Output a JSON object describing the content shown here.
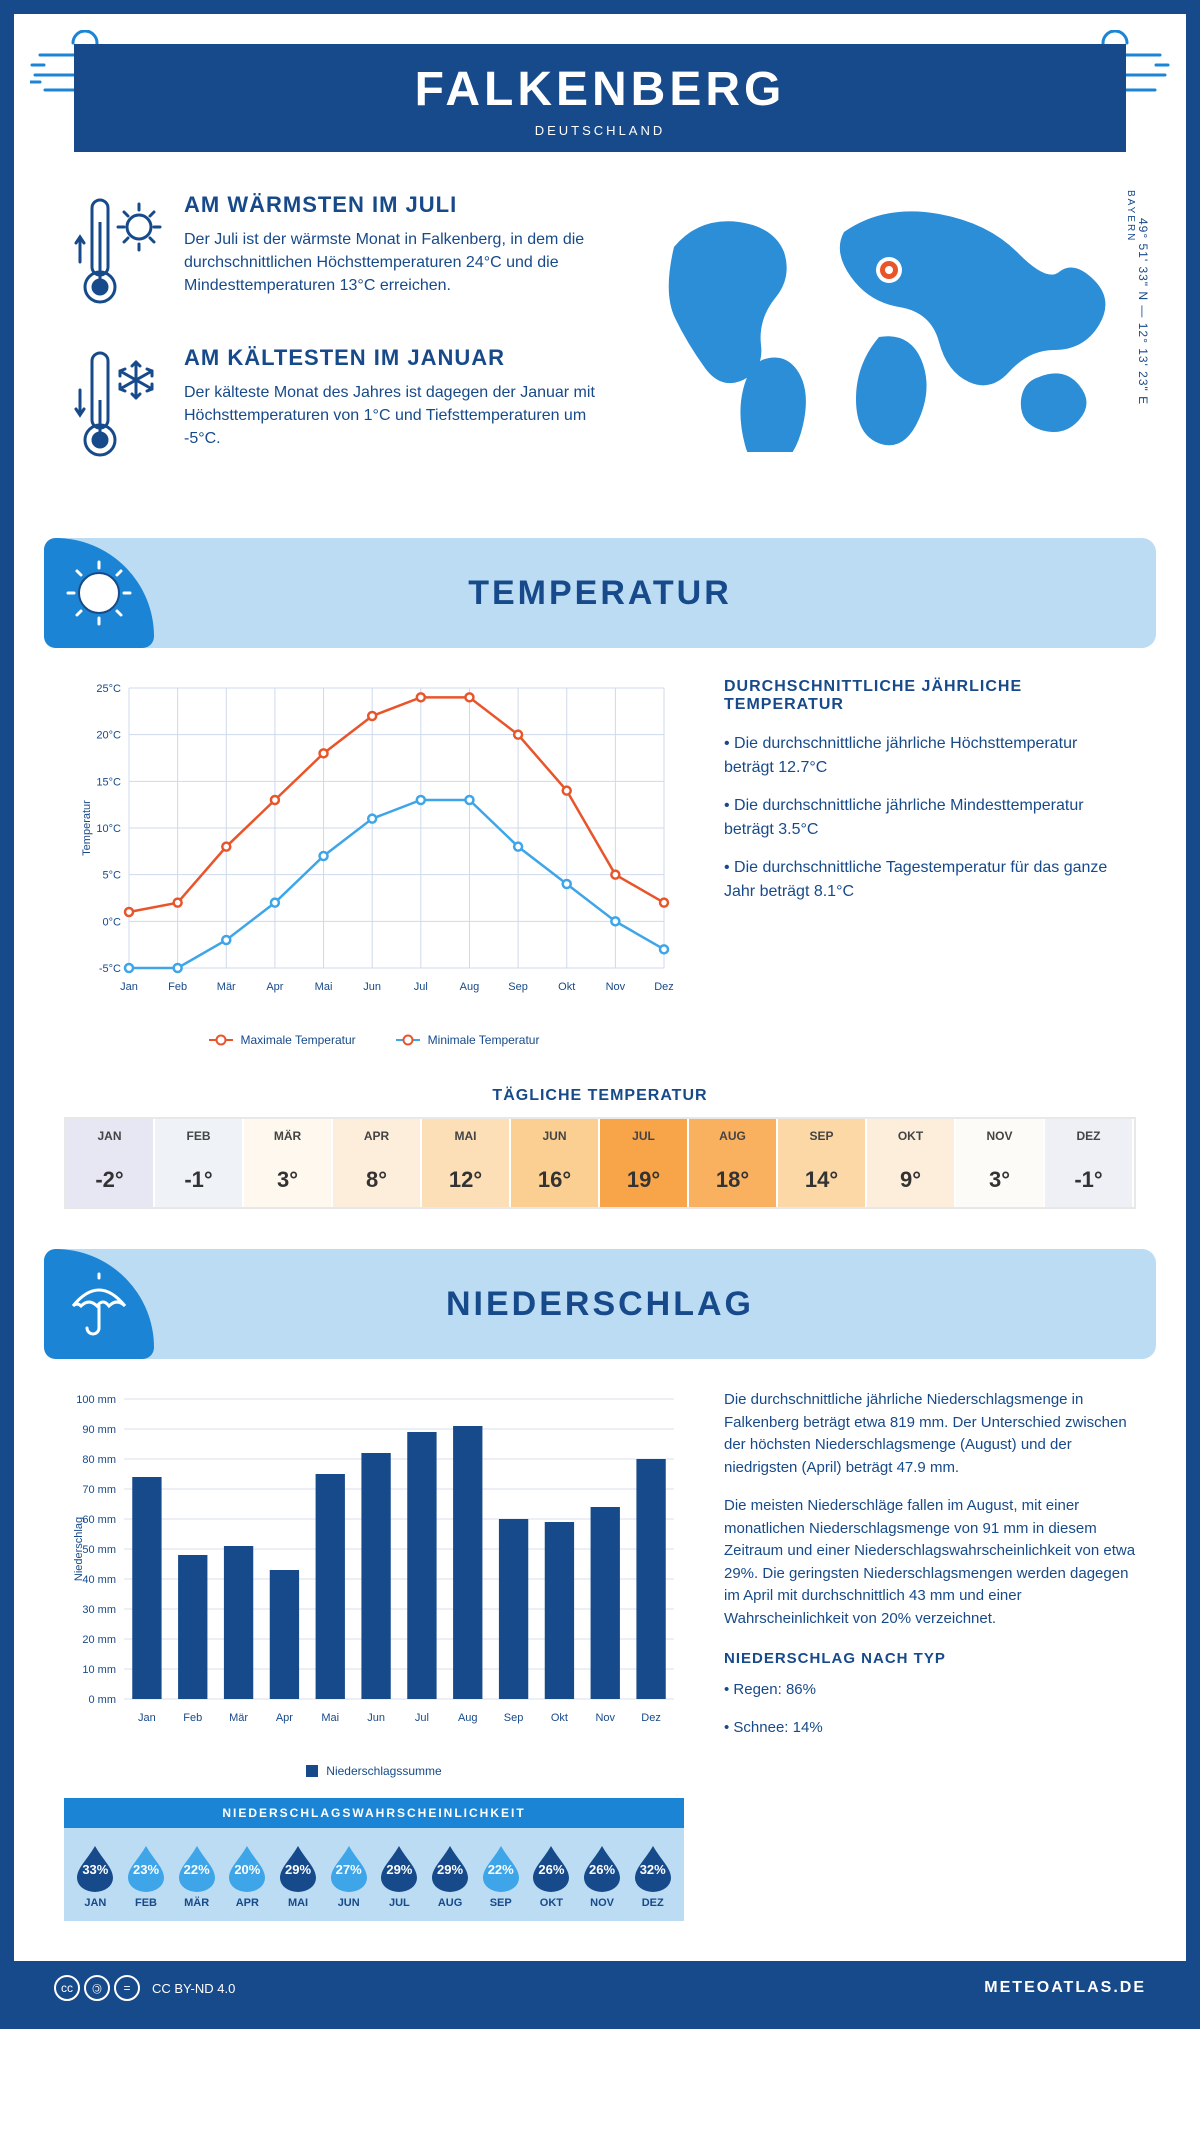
{
  "header": {
    "city": "FALKENBERG",
    "country": "DEUTSCHLAND"
  },
  "location": {
    "region": "BAYERN",
    "coords": "49° 51' 33\" N — 12° 13' 23\" E"
  },
  "facts": {
    "warm": {
      "title": "AM WÄRMSTEN IM JULI",
      "text": "Der Juli ist der wärmste Monat in Falkenberg, in dem die durchschnittlichen Höchsttemperaturen 24°C und die Mindesttemperaturen 13°C erreichen."
    },
    "cold": {
      "title": "AM KÄLTESTEN IM JANUAR",
      "text": "Der kälteste Monat des Jahres ist dagegen der Januar mit Höchsttemperaturen von 1°C und Tiefsttemperaturen um -5°C."
    }
  },
  "sections": {
    "temperature": "TEMPERATUR",
    "precipitation": "NIEDERSCHLAG"
  },
  "temp_chart": {
    "type": "line",
    "months": [
      "Jan",
      "Feb",
      "Mär",
      "Apr",
      "Mai",
      "Jun",
      "Jul",
      "Aug",
      "Sep",
      "Okt",
      "Nov",
      "Dez"
    ],
    "max": [
      1,
      2,
      8,
      13,
      18,
      22,
      24,
      24,
      20,
      14,
      5,
      2
    ],
    "min": [
      -5,
      -5,
      -2,
      2,
      7,
      11,
      13,
      13,
      8,
      4,
      0,
      -3
    ],
    "ylim": [
      -5,
      25
    ],
    "ytick_step": 5,
    "ylabel": "Temperatur",
    "max_color": "#e8552b",
    "min_color": "#3da5e8",
    "grid_color": "#cfd9ec",
    "axis_color": "#174a8a",
    "legend_max": "Maximale Temperatur",
    "legend_min": "Minimale Temperatur"
  },
  "temp_text": {
    "heading": "DURCHSCHNITTLICHE JÄHRLICHE TEMPERATUR",
    "p1": "• Die durchschnittliche jährliche Höchsttemperatur beträgt 12.7°C",
    "p2": "• Die durchschnittliche jährliche Mindesttemperatur beträgt 3.5°C",
    "p3": "• Die durchschnittliche Tagestemperatur für das ganze Jahr beträgt 8.1°C"
  },
  "daily_temp": {
    "title": "TÄGLICHE TEMPERATUR",
    "months": [
      "JAN",
      "FEB",
      "MÄR",
      "APR",
      "MAI",
      "JUN",
      "JUL",
      "AUG",
      "SEP",
      "OKT",
      "NOV",
      "DEZ"
    ],
    "values": [
      "-2°",
      "-1°",
      "3°",
      "8°",
      "12°",
      "16°",
      "19°",
      "18°",
      "14°",
      "9°",
      "3°",
      "-1°"
    ],
    "bg_colors": [
      "#e7e6f3",
      "#eff3f8",
      "#fff8ef",
      "#fdeedb",
      "#fcdfb7",
      "#fbcf91",
      "#f8a549",
      "#f9b160",
      "#fcd8a6",
      "#fdeedb",
      "#fdfbf7",
      "#eff0f6"
    ]
  },
  "precip_chart": {
    "type": "bar",
    "months": [
      "Jan",
      "Feb",
      "Mär",
      "Apr",
      "Mai",
      "Jun",
      "Jul",
      "Aug",
      "Sep",
      "Okt",
      "Nov",
      "Dez"
    ],
    "values": [
      74,
      48,
      51,
      43,
      75,
      82,
      89,
      91,
      60,
      59,
      64,
      80
    ],
    "ylim": [
      0,
      100
    ],
    "ytick_step": 10,
    "ylabel": "Niederschlag",
    "bar_color": "#174a8a",
    "grid_color": "#d8e0ee",
    "legend": "Niederschlagssumme"
  },
  "precip_text": {
    "p1": "Die durchschnittliche jährliche Niederschlagsmenge in Falkenberg beträgt etwa 819 mm. Der Unterschied zwischen der höchsten Niederschlagsmenge (August) und der niedrigsten (April) beträgt 47.9 mm.",
    "p2": "Die meisten Niederschläge fallen im August, mit einer monatlichen Niederschlagsmenge von 91 mm in diesem Zeitraum und einer Niederschlagswahrscheinlichkeit von etwa 29%. Die geringsten Niederschlagsmengen werden dagegen im April mit durchschnittlich 43 mm und einer Wahrscheinlichkeit von 20% verzeichnet.",
    "type_heading": "NIEDERSCHLAG NACH TYP",
    "type1": "• Regen: 86%",
    "type2": "• Schnee: 14%"
  },
  "probability": {
    "title": "NIEDERSCHLAGSWAHRSCHEINLICHKEIT",
    "months": [
      "JAN",
      "FEB",
      "MÄR",
      "APR",
      "MAI",
      "JUN",
      "JUL",
      "AUG",
      "SEP",
      "OKT",
      "NOV",
      "DEZ"
    ],
    "values": [
      "33%",
      "23%",
      "22%",
      "20%",
      "29%",
      "27%",
      "29%",
      "29%",
      "22%",
      "26%",
      "26%",
      "32%"
    ],
    "colors": [
      "#174a8a",
      "#3da5e8",
      "#3da5e8",
      "#3da5e8",
      "#174a8a",
      "#3da5e8",
      "#174a8a",
      "#174a8a",
      "#3da5e8",
      "#174a8a",
      "#174a8a",
      "#174a8a"
    ]
  },
  "footer": {
    "license": "CC BY-ND 4.0",
    "site": "METEOATLAS.DE"
  },
  "colors": {
    "primary": "#174a8a",
    "accent": "#1b84d4",
    "light": "#bcdcf3",
    "orange": "#e8552b"
  }
}
